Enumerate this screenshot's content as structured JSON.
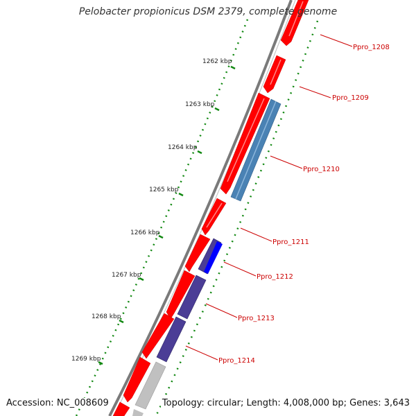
{
  "title": "Pelobacter propionicus DSM 2379, complete genome",
  "footer": {
    "accession": "Accession: NC_008609",
    "topology": "Topology: circular; Length: 4,008,000 bp; Genes: 3,643"
  },
  "colors": {
    "backbone": "#7a7a7a",
    "forward_gene": "#ff0000",
    "reverse_gene_blue": "#4a82b4",
    "reverse_gene_purple": "#4b3d96",
    "reverse_gene_bright": "#0000ff",
    "grey_gene": "#c0c0c0",
    "gc_ticks": "#118811",
    "label_color": "#cc0000"
  },
  "kbp_ticks": [
    {
      "label": "1262 kbp"
    },
    {
      "label": "1263 kbp"
    },
    {
      "label": "1264 kbp"
    },
    {
      "label": "1265 kbp"
    },
    {
      "label": "1266 kbp"
    },
    {
      "label": "1267 kbp"
    },
    {
      "label": "1268 kbp"
    },
    {
      "label": "1269 kbp"
    }
  ],
  "gene_labels": [
    {
      "label": "Ppro_1208"
    },
    {
      "label": "Ppro_1209"
    },
    {
      "label": "Ppro_1210"
    },
    {
      "label": "Ppro_1211"
    },
    {
      "label": "Ppro_1212"
    },
    {
      "label": "Ppro_1213"
    },
    {
      "label": "Ppro_1214"
    }
  ]
}
